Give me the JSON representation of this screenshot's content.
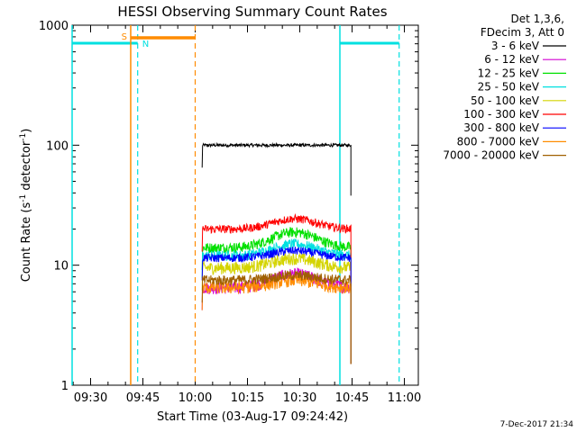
{
  "chart_data": {
    "type": "line",
    "title": "HESSI Observing Summary Count Rates",
    "xlabel": "Start Time (03-Aug-17 09:24:42)",
    "ylabel": "Count Rate (s",
    "ylabel_sup1": "-1",
    "ylabel_mid": " detector",
    "ylabel_sup2": "-1",
    "ylabel_end": ")",
    "y_scale": "log",
    "ylim": [
      1,
      1000
    ],
    "xlim": [
      "09:24:42",
      "11:04:00"
    ],
    "x_ticks": [
      "09:30",
      "09:45",
      "10:00",
      "10:15",
      "10:30",
      "10:45",
      "11:00"
    ],
    "y_ticks": [
      "1",
      "10",
      "100",
      "1000"
    ],
    "legend_header": [
      "Det 1,3,6,",
      "FDecim 3, Att 0"
    ],
    "footer_date": "7-Dec-2017 21:34",
    "data_start": "10:02",
    "data_end": "10:44:40",
    "series": [
      {
        "name": "3 - 6 keV",
        "color": "#000000",
        "level": 100,
        "hump": 0.0,
        "noise": 0.03
      },
      {
        "name": "6 - 12 keV",
        "color": "#d400d4",
        "level": 6.5,
        "hump": 0.3,
        "noise": 0.12
      },
      {
        "name": "12 - 25 keV",
        "color": "#00e000",
        "level": 14,
        "hump": 0.35,
        "noise": 0.1
      },
      {
        "name": "25 - 50 keV",
        "color": "#00e0e0",
        "level": 12,
        "hump": 0.25,
        "noise": 0.1
      },
      {
        "name": "50 - 100 keV",
        "color": "#d4d400",
        "level": 9.5,
        "hump": 0.2,
        "noise": 0.12
      },
      {
        "name": "100 - 300 keV",
        "color": "#ff0000",
        "level": 20,
        "hump": 0.22,
        "noise": 0.08
      },
      {
        "name": "300 - 800 keV",
        "color": "#0000ff",
        "level": 11.5,
        "hump": 0.15,
        "noise": 0.08
      },
      {
        "name": "800 - 7000 keV",
        "color": "#ff8c00",
        "level": 6.5,
        "hump": 0.15,
        "noise": 0.12
      },
      {
        "name": "7000 - 20000 keV",
        "color": "#a06000",
        "level": 7.5,
        "hump": 0.1,
        "noise": 0.1
      }
    ],
    "saa_label": "S",
    "night_label": "N",
    "saa_start": "09:41:30",
    "saa_end": "10:00:00",
    "night_periods": [
      {
        "start": "09:24:42",
        "end": "09:43:30"
      },
      {
        "start": "10:41:30",
        "end": "10:58:30"
      }
    ],
    "colors": {
      "saa": "#ff8c00",
      "night": "#00e0e0",
      "axis": "#000000"
    }
  }
}
